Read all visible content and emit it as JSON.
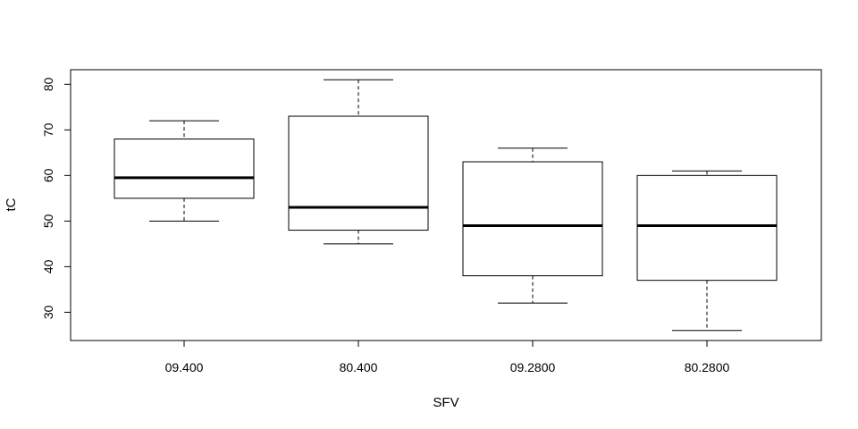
{
  "chart_data": {
    "type": "boxplot",
    "title": "",
    "xlabel": "SFV",
    "ylabel": "tC",
    "categories": [
      "09.400",
      "80.400",
      "09.2800",
      "80.2800"
    ],
    "boxes": [
      {
        "whisker_low": 50,
        "q1": 55,
        "median": 59.5,
        "q3": 68,
        "whisker_high": 72
      },
      {
        "whisker_low": 45,
        "q1": 48,
        "median": 53,
        "q3": 73,
        "whisker_high": 81
      },
      {
        "whisker_low": 32,
        "q1": 38,
        "median": 49,
        "q3": 63,
        "whisker_high": 66
      },
      {
        "whisker_low": 26,
        "q1": 37,
        "median": 49,
        "q3": 60,
        "whisker_high": 61
      }
    ],
    "yticks": [
      30,
      40,
      50,
      60,
      70,
      80
    ],
    "ylim": [
      23.8,
      83.2
    ],
    "grid": false,
    "colors": {
      "box_fill": "#ffffff",
      "stroke": "#000000"
    }
  }
}
